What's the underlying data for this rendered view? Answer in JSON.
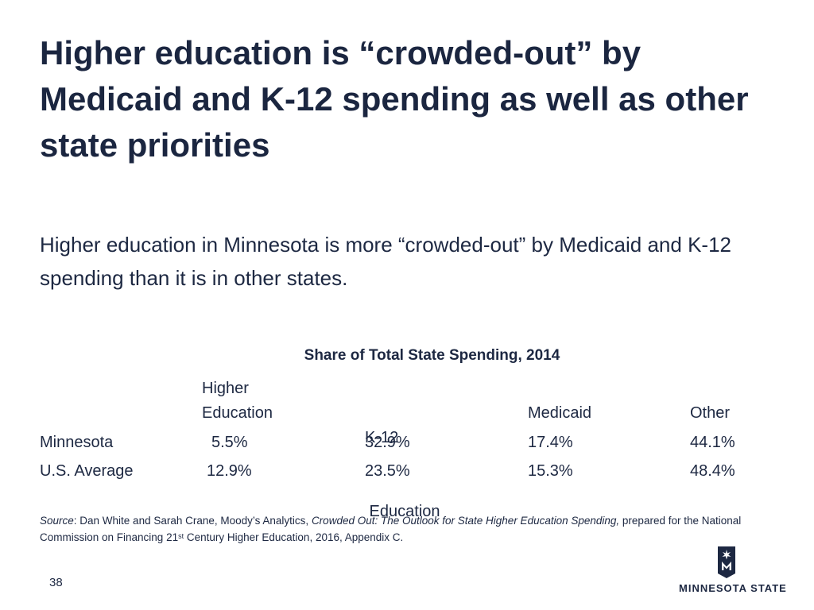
{
  "slide": {
    "title": "Higher education is “crowded-out” by Medicaid and K-12 spending as well as other state priorities",
    "subtitle": "Higher education in Minnesota is more “crowded-out” by Medicaid and K-12 spending than it is in other states.",
    "page_number": "38"
  },
  "table": {
    "caption": "Share of Total State Spending, 2014",
    "columns": [
      {
        "line1": "Higher",
        "line2": "Education"
      },
      {
        "line1": "K-12",
        "line2": " Education"
      },
      {
        "line1": "",
        "line2": "Medicaid"
      },
      {
        "line1": "",
        "line2": "Other"
      }
    ],
    "rows": [
      {
        "label": "Minnesota",
        "values": [
          "5.5%",
          "32.9%",
          "17.4%",
          "44.1%"
        ]
      },
      {
        "label": "U.S. Average",
        "values": [
          "12.9%",
          "23.5%",
          "15.3%",
          "48.4%"
        ]
      }
    ]
  },
  "source": {
    "label": "Source",
    "authors": ": Dan White and Sarah Crane, Moody’s Analytics, ",
    "work": "Crowded Out: The Outlook for State Higher Education Spending,",
    "prepared": " prepared for the National Commission on Financing 21",
    "superscript": "st",
    "rest": " Century Higher Education, 2016, Appendix C."
  },
  "logo": {
    "text": "MINNESOTA STATE",
    "icon": "minnesota-state-star-m-icon",
    "mark_color": "#1d2842"
  },
  "colors": {
    "text": "#1d2842",
    "background": "#ffffff"
  }
}
